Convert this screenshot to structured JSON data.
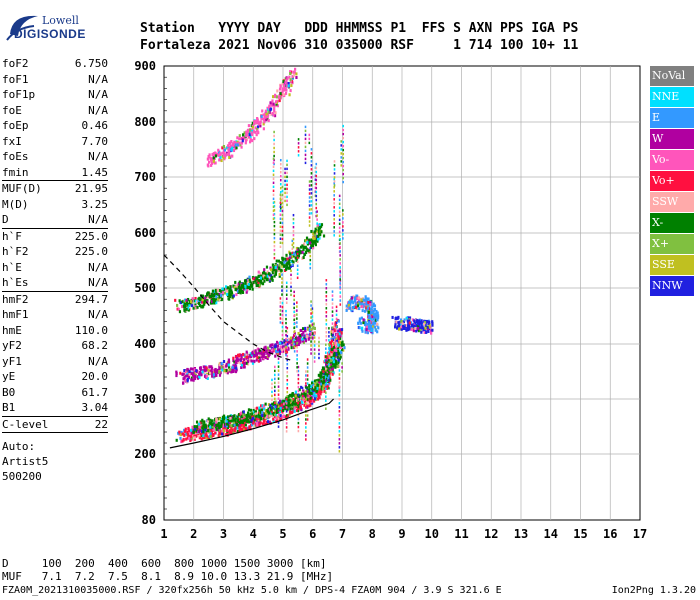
{
  "logo": {
    "line1": "Lowell",
    "line2": "DIGISONDE"
  },
  "header": {
    "labels": "Station   YYYY DAY   DDD HHMMSS P1  FFS S AXN PPS IGA PS",
    "values": "Fortaleza 2021 Nov06 310 035000 RSF     1 714 100 10+ 11"
  },
  "params": {
    "group1": [
      {
        "name": "foF2",
        "value": "6.750"
      },
      {
        "name": "foF1",
        "value": "N/A"
      },
      {
        "name": "foF1p",
        "value": "N/A"
      },
      {
        "name": "foE",
        "value": "N/A"
      },
      {
        "name": "foEp",
        "value": "0.46"
      },
      {
        "name": "fxI",
        "value": "7.70"
      },
      {
        "name": "foEs",
        "value": "N/A"
      },
      {
        "name": "fmin",
        "value": "1.45"
      }
    ],
    "group2": [
      {
        "name": "MUF(D)",
        "value": "21.95"
      },
      {
        "name": "M(D)",
        "value": "3.25"
      },
      {
        "name": "D",
        "value": "N/A"
      }
    ],
    "group3": [
      {
        "name": "h`F",
        "value": "225.0"
      },
      {
        "name": "h`F2",
        "value": "225.0"
      },
      {
        "name": "h`E",
        "value": "N/A"
      },
      {
        "name": "h`Es",
        "value": "N/A"
      }
    ],
    "group4": [
      {
        "name": "hmF2",
        "value": "294.7"
      },
      {
        "name": "hmF1",
        "value": "N/A"
      },
      {
        "name": "hmE",
        "value": "110.0"
      },
      {
        "name": "yF2",
        "value": "68.2"
      },
      {
        "name": "yF1",
        "value": "N/A"
      },
      {
        "name": "yE",
        "value": "20.0"
      },
      {
        "name": "B0",
        "value": "61.7"
      },
      {
        "name": "B1",
        "value": "3.04"
      }
    ],
    "group5": [
      {
        "name": "C-level",
        "value": "22"
      }
    ],
    "auto": [
      "Auto:",
      "Artist5",
      "500200"
    ]
  },
  "legend": [
    {
      "label": "NoVal",
      "color": "#808080"
    },
    {
      "label": "NNE",
      "color": "#00e0ff"
    },
    {
      "label": "E",
      "color": "#3399ff"
    },
    {
      "label": "W",
      "color": "#b000a0"
    },
    {
      "label": "Vo-",
      "color": "#ff55bb"
    },
    {
      "label": "Vo+",
      "color": "#ff1040"
    },
    {
      "label": "SSW",
      "color": "#ffaaaa"
    },
    {
      "label": "X-",
      "color": "#008000"
    },
    {
      "label": "X+",
      "color": "#80c040"
    },
    {
      "label": "SSE",
      "color": "#c0c020"
    },
    {
      "label": "NNW",
      "color": "#2020e0"
    }
  ],
  "footer": {
    "d_row": "D     100  200  400  600  800 1000 1500 3000 [km]",
    "muf_row": "MUF   7.1  7.2  7.5  8.1  8.9 10.0 13.3 21.9 [MHz]",
    "file_line": "FZA0M_2021310035000.RSF / 320fx256h 50 kHz 5.0 km / DPS-4 FZA0M 904 / 3.9 S 321.6 E",
    "version": "Ion2Png 1.3.20"
  },
  "chart_data": {
    "type": "scatter",
    "xlim": [
      1,
      17
    ],
    "ylim": [
      80,
      900
    ],
    "x_ticks": [
      1,
      2,
      3,
      4,
      5,
      6,
      7,
      8,
      9,
      10,
      11,
      12,
      13,
      14,
      15,
      16,
      17
    ],
    "y_ticks": [
      80,
      200,
      300,
      400,
      500,
      600,
      700,
      800,
      900
    ],
    "grid": true,
    "profile_solid": [
      [
        1.2,
        211
      ],
      [
        2,
        220
      ],
      [
        3,
        232
      ],
      [
        4,
        246
      ],
      [
        5,
        262
      ],
      [
        5.8,
        278
      ],
      [
        6.3,
        287
      ],
      [
        6.55,
        292
      ],
      [
        6.7,
        300
      ]
    ],
    "profile_dashed": [
      [
        1.0,
        560
      ],
      [
        1.5,
        532
      ],
      [
        2,
        502
      ],
      [
        2.5,
        470
      ],
      [
        3,
        440
      ],
      [
        3.5,
        420
      ],
      [
        4,
        400
      ],
      [
        4.5,
        385
      ],
      [
        5,
        375
      ],
      [
        5.3,
        370
      ]
    ],
    "traces": [
      {
        "name": "o-trace F2",
        "color": "#ff1040",
        "points": [
          [
            1.5,
            236
          ],
          [
            2,
            240
          ],
          [
            2.5,
            244
          ],
          [
            3,
            248
          ],
          [
            3.5,
            254
          ],
          [
            4,
            262
          ],
          [
            4.5,
            270
          ],
          [
            5,
            280
          ],
          [
            5.5,
            292
          ],
          [
            6,
            310
          ],
          [
            6.3,
            330
          ],
          [
            6.5,
            355
          ],
          [
            6.6,
            380
          ],
          [
            6.7,
            405
          ],
          [
            6.8,
            440
          ]
        ]
      },
      {
        "name": "x-trace F2",
        "color": "#008000",
        "points": [
          [
            2,
            250
          ],
          [
            2.5,
            255
          ],
          [
            3,
            260
          ],
          [
            3.5,
            266
          ],
          [
            4,
            274
          ],
          [
            4.5,
            283
          ],
          [
            5,
            293
          ],
          [
            5.5,
            306
          ],
          [
            6,
            322
          ],
          [
            6.4,
            345
          ],
          [
            6.7,
            375
          ],
          [
            6.9,
            400
          ]
        ]
      },
      {
        "name": "second hop",
        "color": "#008000",
        "points": [
          [
            1.5,
            470
          ],
          [
            2,
            476
          ],
          [
            2.5,
            484
          ],
          [
            3,
            492
          ],
          [
            3.5,
            502
          ],
          [
            4,
            514
          ],
          [
            4.5,
            528
          ],
          [
            5,
            545
          ],
          [
            5.5,
            565
          ],
          [
            6,
            590
          ],
          [
            6.2,
            610
          ]
        ]
      },
      {
        "name": "third hop",
        "color": "#ff55bb",
        "points": [
          [
            2.5,
            730
          ],
          [
            3,
            745
          ],
          [
            3.5,
            765
          ],
          [
            4,
            790
          ],
          [
            4.5,
            820
          ],
          [
            5,
            860
          ],
          [
            5.3,
            890
          ]
        ]
      },
      {
        "name": "spread F",
        "color": "#b000a0",
        "points": [
          [
            1.5,
            342
          ],
          [
            2,
            348
          ],
          [
            2.5,
            352
          ],
          [
            3,
            358
          ],
          [
            3.5,
            370
          ],
          [
            4,
            380
          ],
          [
            4.5,
            390
          ],
          [
            5,
            398
          ],
          [
            5.5,
            410
          ],
          [
            6,
            430
          ]
        ]
      },
      {
        "name": "oblique E",
        "color": "#3399ff",
        "points": [
          [
            7.2,
            470
          ],
          [
            7.5,
            480
          ],
          [
            7.8,
            470
          ],
          [
            8,
            455
          ],
          [
            8,
            430
          ],
          [
            7.6,
            440
          ]
        ]
      },
      {
        "name": "oblique NNW",
        "color": "#2020e0",
        "points": [
          [
            8.8,
            440
          ],
          [
            9.2,
            438
          ],
          [
            9.6,
            434
          ],
          [
            9.9,
            432
          ]
        ]
      }
    ]
  }
}
